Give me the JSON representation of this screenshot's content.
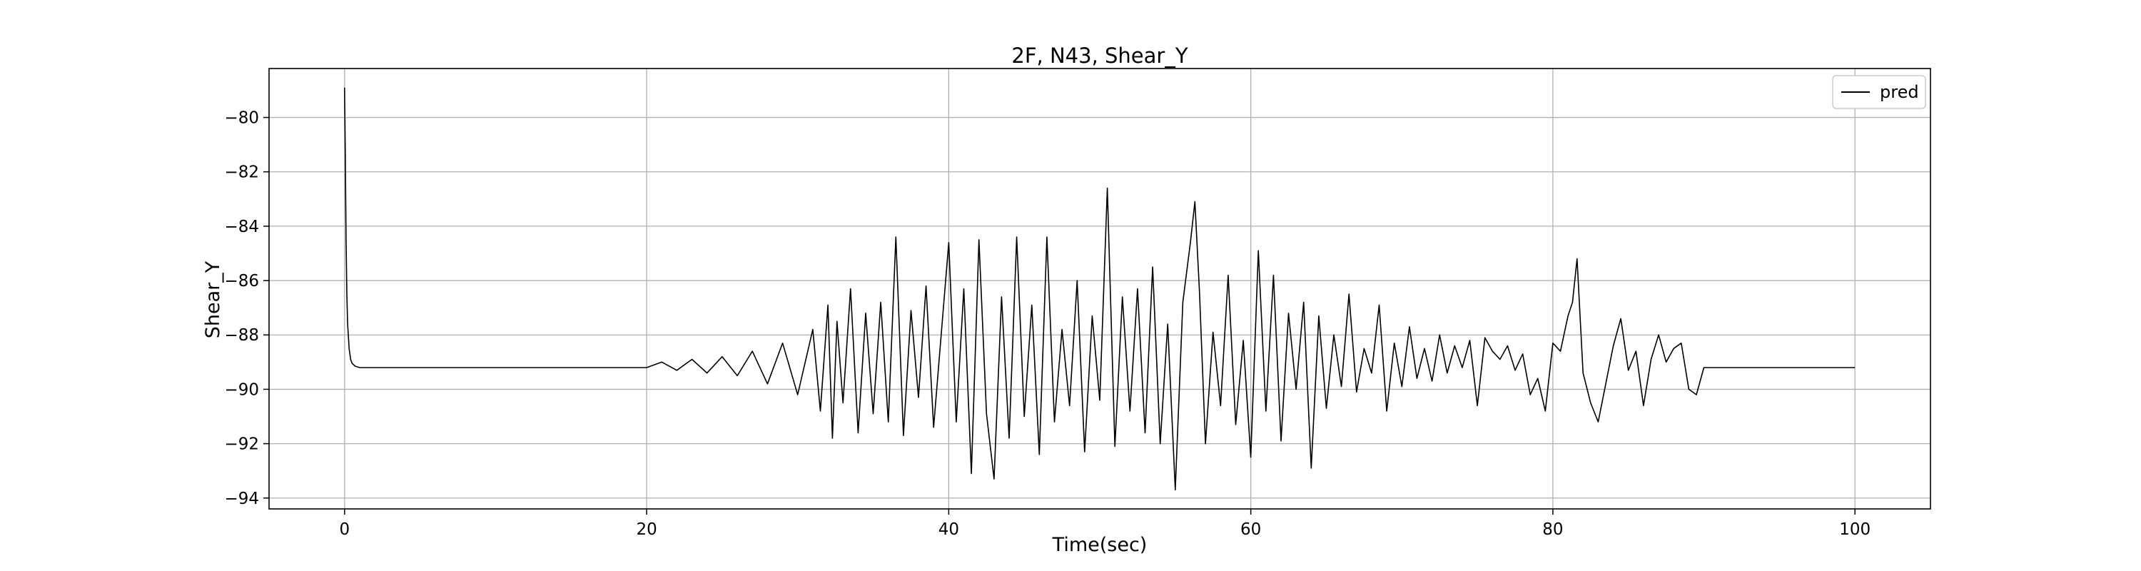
{
  "chart_data": {
    "type": "line",
    "title": "2F, N43, Shear_Y",
    "xlabel": "Time(sec)",
    "ylabel": "Shear_Y",
    "xlim": [
      -5,
      105
    ],
    "ylim": [
      -94.4,
      -78.2
    ],
    "xticks": [
      0,
      20,
      40,
      60,
      80,
      100
    ],
    "yticks": [
      -94,
      -92,
      -90,
      -88,
      -86,
      -84,
      -82,
      -80
    ],
    "xtick_labels": [
      "0",
      "20",
      "40",
      "60",
      "80",
      "100"
    ],
    "ytick_labels": [
      "−94",
      "−92",
      "−90",
      "−88",
      "−86",
      "−84",
      "−82",
      "−80"
    ],
    "grid": true,
    "legend_position": "top-right",
    "colors": {
      "line": "#000000",
      "grid": "#b0b0b0",
      "frame": "#000000"
    },
    "series": [
      {
        "name": "pred",
        "x": [
          0,
          0.05,
          0.1,
          0.15,
          0.2,
          0.3,
          0.4,
          0.5,
          0.7,
          1.0,
          1.5,
          2,
          5,
          10,
          15,
          20,
          21,
          22,
          23,
          24,
          25,
          26,
          27,
          28,
          29,
          30,
          31,
          31.5,
          32,
          32.3,
          32.6,
          33,
          33.5,
          34,
          34.5,
          35,
          35.5,
          36,
          36.5,
          37,
          37.5,
          38,
          38.5,
          39,
          39.5,
          40,
          40.5,
          41,
          41.5,
          42,
          42.5,
          43,
          43.5,
          44,
          44.5,
          45,
          45.5,
          46,
          46.5,
          47,
          47.5,
          48,
          48.5,
          49,
          49.5,
          50,
          50.5,
          51,
          51.5,
          52,
          52.5,
          53,
          53.5,
          54,
          54.5,
          55,
          55.5,
          56,
          56.3,
          56.6,
          57,
          57.5,
          58,
          58.5,
          59,
          59.5,
          60,
          60.5,
          61,
          61.5,
          62,
          62.5,
          63,
          63.5,
          64,
          64.5,
          65,
          65.5,
          66,
          66.5,
          67,
          67.5,
          68,
          68.5,
          69,
          69.5,
          70,
          70.5,
          71,
          71.5,
          72,
          72.5,
          73,
          73.5,
          74,
          74.5,
          75,
          75.5,
          76,
          76.5,
          77,
          77.5,
          78,
          78.5,
          79,
          79.5,
          80,
          80.5,
          81,
          81.3,
          81.6,
          82,
          82.5,
          83,
          83.5,
          84,
          84.5,
          85,
          85.5,
          86,
          86.5,
          87,
          87.5,
          88,
          88.5,
          89,
          89.5,
          90,
          90.5,
          92,
          95,
          98,
          100
        ],
        "y": [
          -78.9,
          -81.5,
          -84.5,
          -86.5,
          -87.6,
          -88.5,
          -88.9,
          -89.05,
          -89.15,
          -89.2,
          -89.2,
          -89.2,
          -89.2,
          -89.2,
          -89.2,
          -89.2,
          -89.0,
          -89.3,
          -88.9,
          -89.4,
          -88.8,
          -89.5,
          -88.6,
          -89.8,
          -88.3,
          -90.2,
          -87.8,
          -90.8,
          -86.9,
          -91.8,
          -87.5,
          -90.5,
          -86.3,
          -91.6,
          -87.2,
          -90.9,
          -86.8,
          -91.2,
          -84.4,
          -91.7,
          -87.1,
          -90.3,
          -86.2,
          -91.4,
          -88.0,
          -84.6,
          -91.2,
          -86.3,
          -93.1,
          -84.5,
          -90.9,
          -93.3,
          -86.6,
          -91.8,
          -84.4,
          -91.0,
          -86.9,
          -92.4,
          -84.4,
          -91.2,
          -87.8,
          -90.6,
          -86.0,
          -92.3,
          -87.3,
          -90.4,
          -82.6,
          -92.1,
          -86.6,
          -90.8,
          -86.3,
          -91.6,
          -85.5,
          -92.0,
          -87.6,
          -93.7,
          -86.8,
          -84.6,
          -83.1,
          -86.4,
          -92.0,
          -87.9,
          -90.6,
          -85.8,
          -91.3,
          -88.2,
          -92.5,
          -84.9,
          -90.8,
          -85.8,
          -91.9,
          -87.2,
          -90.0,
          -86.8,
          -92.9,
          -87.3,
          -90.7,
          -88.0,
          -89.9,
          -86.5,
          -90.1,
          -88.5,
          -89.4,
          -86.9,
          -90.8,
          -88.3,
          -89.9,
          -87.7,
          -89.6,
          -88.5,
          -89.7,
          -88.0,
          -89.4,
          -88.4,
          -89.2,
          -88.2,
          -90.6,
          -88.1,
          -88.6,
          -88.9,
          -88.4,
          -89.3,
          -88.7,
          -90.2,
          -89.6,
          -90.8,
          -88.3,
          -88.6,
          -87.3,
          -86.8,
          -85.2,
          -89.4,
          -90.5,
          -91.2,
          -89.8,
          -88.4,
          -87.4,
          -89.3,
          -88.6,
          -90.6,
          -88.9,
          -88.0,
          -89.0,
          -88.5,
          -88.3,
          -90.0,
          -90.2,
          -89.2,
          -89.2,
          -89.2,
          -89.2,
          -89.2,
          -89.2
        ]
      }
    ]
  }
}
